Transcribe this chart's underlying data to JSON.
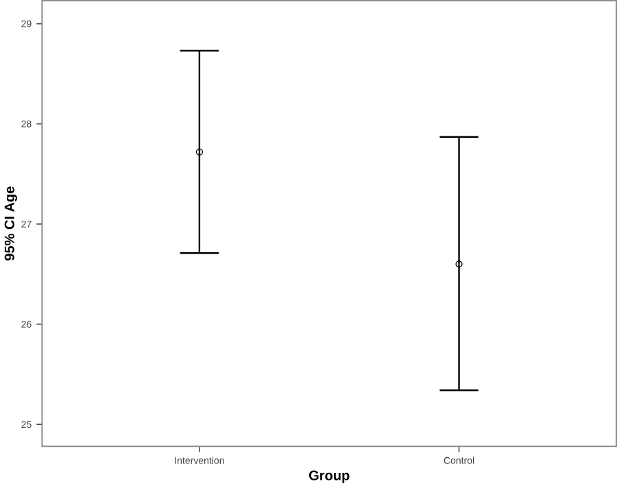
{
  "chart_data": {
    "type": "scatter",
    "xlabel": "Group",
    "ylabel": "95% CI Age",
    "categories": [
      "Intervention",
      "Control"
    ],
    "values": [
      27.72,
      26.6
    ],
    "errors": [
      [
        26.71,
        28.73
      ],
      [
        25.34,
        27.87
      ]
    ],
    "color": "#000000",
    "marker": "circle",
    "ylim": [
      24.78,
      29.23
    ],
    "yticks": [
      25,
      26,
      27,
      28,
      29
    ],
    "grid": false
  }
}
